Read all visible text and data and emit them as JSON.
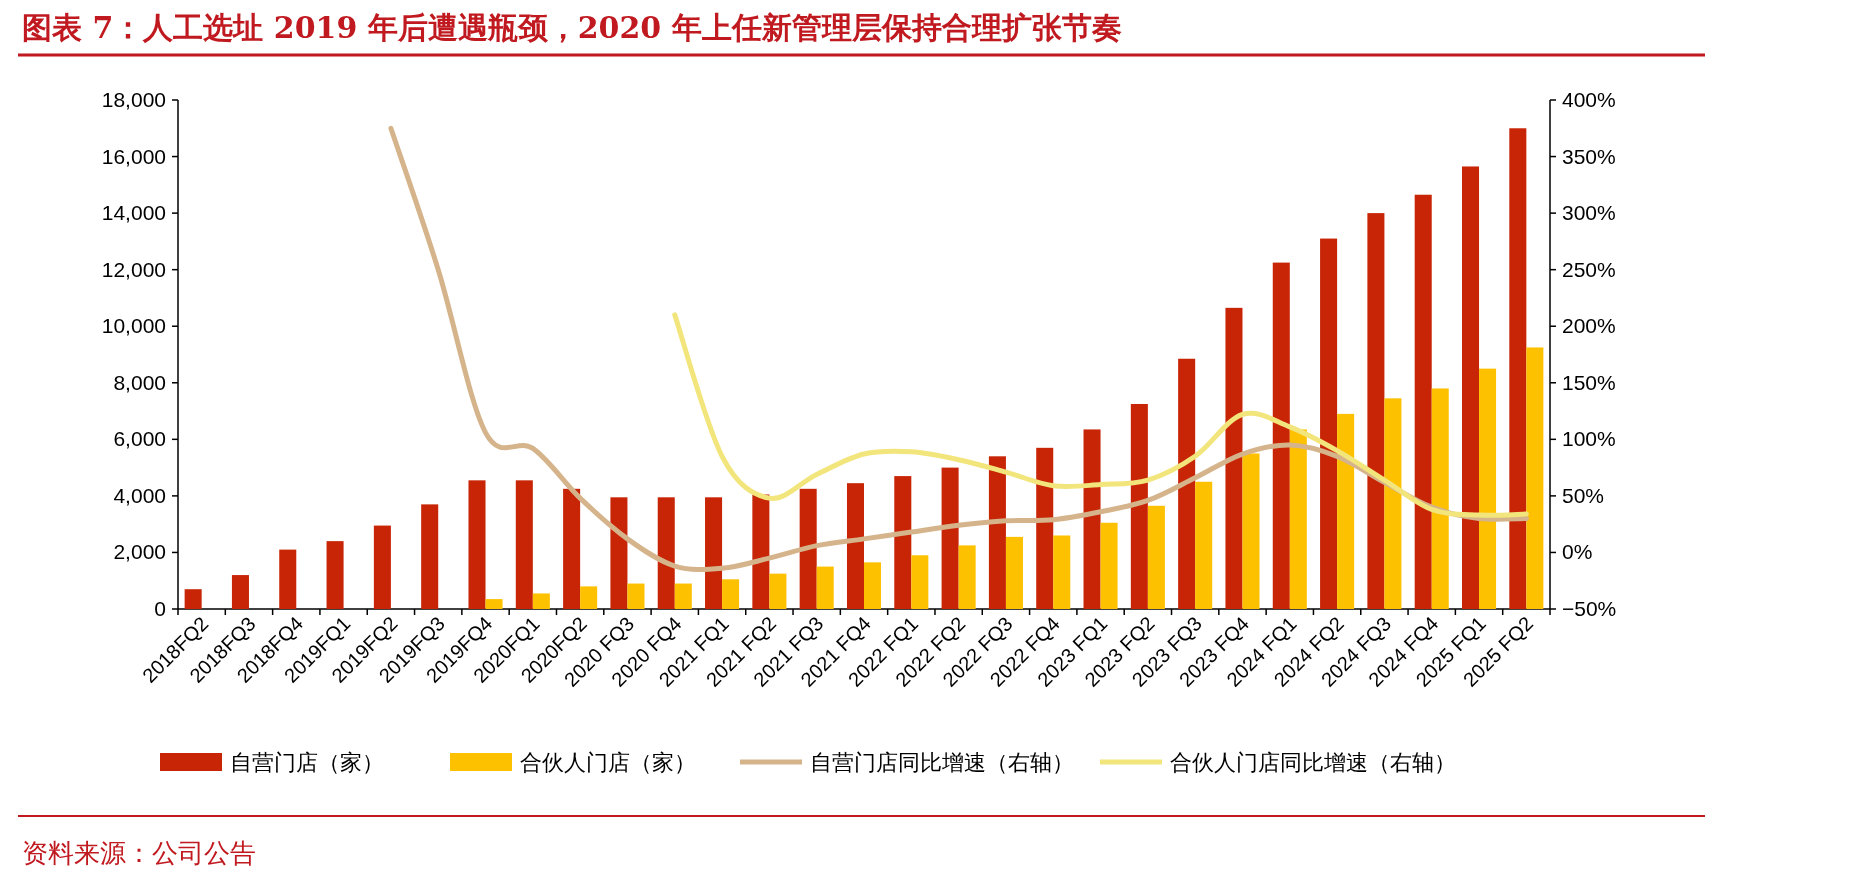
{
  "chart_data": {
    "type": "bar",
    "title": "图表 7：人工选址 2019 年后遭遇瓶颈，2020 年上任新管理层保持合理扩张节奏",
    "annotations": [
      "资料来源：公司公告"
    ],
    "categories": [
      "2018FQ2",
      "2018FQ3",
      "2018FQ4",
      "2019FQ1",
      "2019FQ2",
      "2019FQ3",
      "2019FQ4",
      "2020FQ1",
      "2020FQ2",
      "2020 FQ3",
      "2020 FQ4",
      "2021 FQ1",
      "2021 FQ2",
      "2021 FQ3",
      "2021 FQ4",
      "2022 FQ1",
      "2022 FQ2",
      "2022 FQ3",
      "2022 FQ4",
      "2023 FQ1",
      "2023 FQ2",
      "2023 FQ3",
      "2023 FQ4",
      "2024 FQ1",
      "2024 FQ2",
      "2024 FQ3",
      "2024 FQ4",
      "2025 FQ1",
      "2025 FQ2"
    ],
    "series": [
      {
        "name": "自营门店（家）",
        "color": "#c82506",
        "values": [
          700,
          1200,
          2100,
          2400,
          2950,
          3700,
          4550,
          4550,
          4250,
          3950,
          3950,
          3950,
          4050,
          4250,
          4450,
          4700,
          5000,
          5400,
          5700,
          6350,
          7250,
          8850,
          10650,
          12250,
          13100,
          14000,
          14650,
          15650,
          17000
        ]
      },
      {
        "name": "合伙人门店（家）",
        "color": "#fdc100",
        "values": [
          null,
          null,
          null,
          null,
          null,
          null,
          350,
          550,
          800,
          900,
          900,
          1050,
          1250,
          1500,
          1650,
          1900,
          2250,
          2550,
          2600,
          3050,
          3650,
          4500,
          5500,
          6350,
          6900,
          7450,
          7800,
          8500,
          9250
        ]
      },
      {
        "name": "自营门店同比增速（右轴）",
        "type": "line",
        "axis": "y2",
        "color": "#d5b48c",
        "values": [
          null,
          null,
          null,
          null,
          375,
          250,
          106,
          92,
          48,
          12,
          -12,
          -14,
          -5,
          6,
          12,
          18,
          24,
          28,
          29,
          36,
          46,
          66,
          87,
          95,
          85,
          62,
          40,
          30,
          30
        ]
      },
      {
        "name": "合伙人门店同比增速（右轴）",
        "type": "line",
        "axis": "y2",
        "color": "#f2e57c",
        "values": [
          null,
          null,
          null,
          null,
          null,
          null,
          null,
          null,
          null,
          null,
          210,
          85,
          48,
          69,
          87,
          89,
          82,
          71,
          59,
          60,
          64,
          85,
          122,
          111,
          90,
          64,
          38,
          33,
          34
        ]
      }
    ],
    "ylim": [
      0,
      18000
    ],
    "yticks": [
      0,
      {
        "value": 2000,
        "label": "2,000"
      },
      {
        "value": 4000,
        "label": "4,000"
      },
      {
        "value": 6000,
        "label": "6,000"
      },
      {
        "value": 8000,
        "label": "8,000"
      },
      {
        "value": 10000,
        "label": "10,000"
      },
      {
        "value": 12000,
        "label": "12,000"
      },
      {
        "value": 14000,
        "label": "14,000"
      },
      {
        "value": 16000,
        "label": "16,000"
      },
      {
        "value": 18000,
        "label": "18,000"
      }
    ],
    "y2lim": [
      -50,
      400
    ],
    "y2ticks": [
      {
        "value": -50,
        "label": "−50%"
      },
      {
        "value": 0,
        "label": "0%"
      },
      {
        "value": 50,
        "label": "50%"
      },
      {
        "value": 100,
        "label": "100%"
      },
      {
        "value": 150,
        "label": "150%"
      },
      {
        "value": 200,
        "label": "200%"
      },
      {
        "value": 250,
        "label": "250%"
      },
      {
        "value": 300,
        "label": "300%"
      },
      {
        "value": 350,
        "label": "350%"
      },
      {
        "value": 400,
        "label": "400%"
      }
    ],
    "legend": "bottom",
    "grid": false
  }
}
